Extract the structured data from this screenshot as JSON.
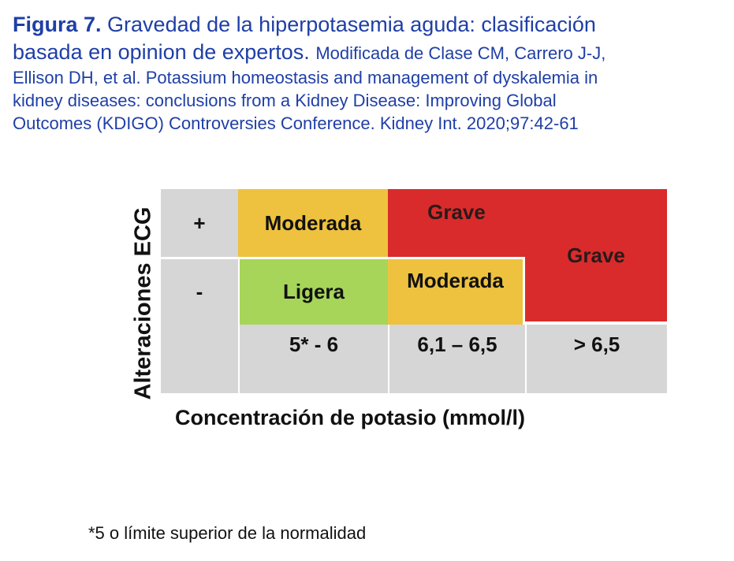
{
  "caption": {
    "figure_label": "Figura 7.",
    "title_part1": "Gravedad de la hiperpotasemia aguda: clasificación",
    "title_part2": "basada en opinion de expertos.",
    "reference_part1": "Modificada de Clase CM, Carrero J-J,",
    "reference_line2": "Ellison DH, et al. Potassium homeostasis and management of dyskalemia in",
    "reference_line3": "kidney diseases: conclusions from a Kidney Disease: Improving Global",
    "reference_line4": "Outcomes (KDIGO) Controversies Conference. Kidney Int. 2020;97:42-61"
  },
  "matrix": {
    "row_labels": {
      "positive": "+",
      "negative": "-"
    },
    "column_labels": [
      "5* - 6",
      "6,1 – 6,5",
      "> 6,5"
    ],
    "cells": {
      "pos_col1": "Moderada",
      "pos_col2": "Grave",
      "neg_col1": "Ligera",
      "neg_col2": "Moderada",
      "col3_merged": "Grave"
    }
  },
  "axes": {
    "y_label": "Alteraciones ECG",
    "x_label": "Concentración de potasio (mmol/l)"
  },
  "footnote": "*5 o límite superior de la normalidad",
  "colors": {
    "caption_text": "#1f3fa6",
    "gray": "#d6d6d6",
    "moderate": "#eec23f",
    "severe": "#d92b2b",
    "mild": "#a6d55a"
  }
}
